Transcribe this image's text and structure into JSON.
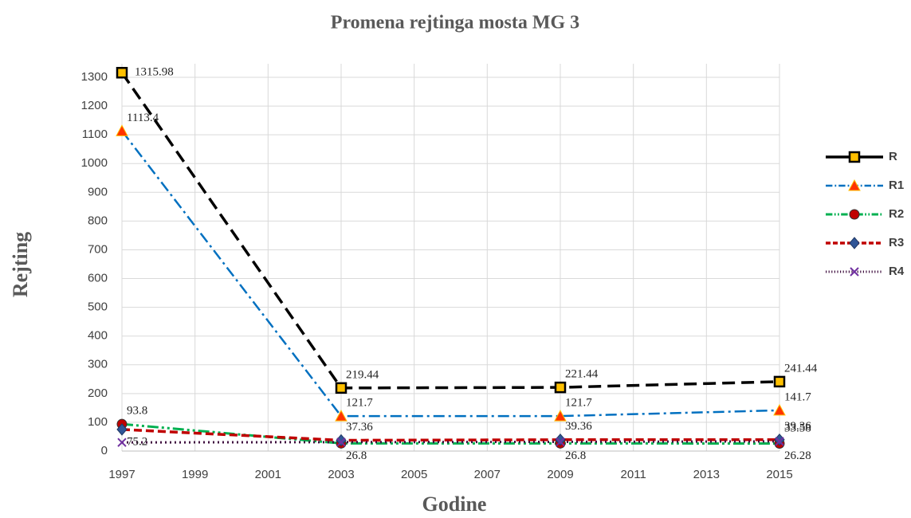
{
  "chart_data": {
    "type": "line",
    "title": "Promena rejtinga mosta MG 3",
    "xlabel": "Godine",
    "ylabel": "Rejting",
    "x": [
      1997,
      2003,
      2009,
      2015
    ],
    "xlim": [
      1997,
      2015
    ],
    "xticks": [
      1997,
      1999,
      2001,
      2003,
      2005,
      2007,
      2009,
      2011,
      2013,
      2015
    ],
    "ylim": [
      0,
      1300
    ],
    "yticks": [
      0,
      100,
      200,
      300,
      400,
      500,
      600,
      700,
      800,
      900,
      1000,
      1100,
      1200,
      1300
    ],
    "grid": true,
    "legend": "right",
    "series": [
      {
        "name": "R",
        "color": "#000000",
        "marker": "square",
        "marker_color": "#FFC000",
        "values": [
          1315.98,
          219.44,
          221.44,
          241.44
        ],
        "value_labels": [
          "1315.98",
          "219.44",
          "221.44",
          "241.44"
        ]
      },
      {
        "name": "R1",
        "color": "#0070C0",
        "marker": "triangle",
        "marker_color": "#FF3300",
        "values": [
          1113.4,
          121.7,
          121.7,
          141.7
        ],
        "value_labels": [
          "1113.4",
          "121.7",
          "121.7",
          "141.7"
        ]
      },
      {
        "name": "R2",
        "color": "#00B050",
        "marker": "circle",
        "marker_color": "#C00000",
        "values": [
          93.8,
          26.8,
          26.8,
          26.28
        ],
        "value_labels": [
          "93.8",
          "26.8",
          "26.8",
          "26.28"
        ]
      },
      {
        "name": "R3",
        "color": "#C00000",
        "marker": "diamond",
        "marker_color": "#2F5597",
        "values": [
          75.2,
          37.36,
          39.36,
          39.36
        ],
        "value_labels": [
          "75.2",
          "37.36",
          "39.36",
          "39.36"
        ]
      },
      {
        "name": "R4",
        "color": "#3F0F3F",
        "marker": "cross",
        "marker_color": "#7030A0",
        "values": [
          30,
          31,
          32,
          33.58
        ],
        "value_labels": [
          null,
          null,
          null,
          "33.58"
        ]
      }
    ]
  }
}
